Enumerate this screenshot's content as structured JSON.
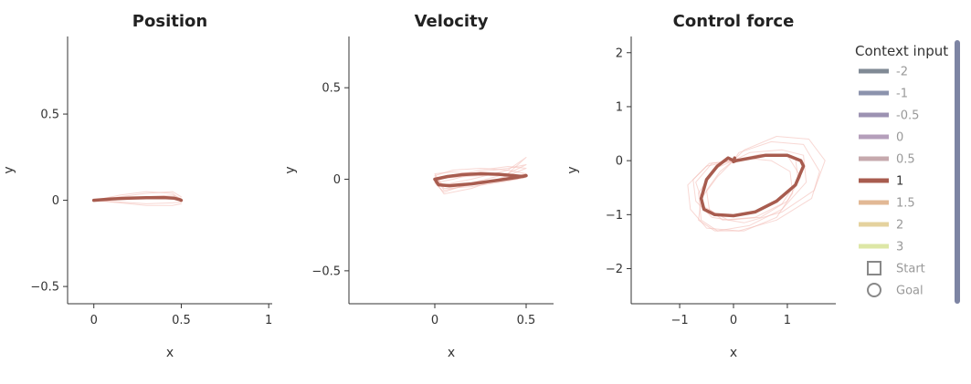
{
  "chart_data": [
    {
      "type": "line",
      "title": "Position",
      "xlabel": "x",
      "ylabel": "y",
      "xlim": [
        -0.15,
        1.02
      ],
      "ylim": [
        -0.6,
        0.95
      ],
      "xticks": [
        0,
        0.5,
        1
      ],
      "xtick_labels": [
        "0",
        "0.5",
        "1"
      ],
      "yticks": [
        -0.5,
        0,
        0.5
      ],
      "ytick_labels": [
        "−0.5",
        "0",
        "0.5"
      ],
      "series": [
        {
          "context": "1",
          "role": "mean",
          "x": [
            0.0,
            0.1,
            0.2,
            0.3,
            0.4,
            0.46,
            0.49,
            0.5
          ],
          "y": [
            0.0,
            0.008,
            0.012,
            0.015,
            0.016,
            0.012,
            0.004,
            0.0
          ]
        },
        {
          "context": "1",
          "role": "trial",
          "x": [
            0.0,
            0.15,
            0.3,
            0.45,
            0.5
          ],
          "y": [
            0.0,
            0.03,
            0.05,
            0.04,
            0.0
          ]
        },
        {
          "context": "1",
          "role": "trial",
          "x": [
            0.0,
            0.15,
            0.3,
            0.45,
            0.5
          ],
          "y": [
            0.0,
            0.02,
            0.04,
            0.05,
            0.02
          ]
        },
        {
          "context": "1",
          "role": "trial",
          "x": [
            0.0,
            0.15,
            0.3,
            0.45,
            0.5
          ],
          "y": [
            0.0,
            -0.01,
            -0.02,
            -0.015,
            -0.01
          ]
        },
        {
          "context": "1",
          "role": "trial",
          "x": [
            0.0,
            0.15,
            0.3,
            0.45,
            0.5
          ],
          "y": [
            0.0,
            -0.015,
            -0.03,
            -0.03,
            -0.02
          ]
        },
        {
          "context": "1",
          "role": "trial",
          "x": [
            0.0,
            0.15,
            0.3,
            0.45,
            0.5
          ],
          "y": [
            0.0,
            0.01,
            0.02,
            0.03,
            0.01
          ]
        }
      ]
    },
    {
      "type": "line",
      "title": "Velocity",
      "xlabel": "x",
      "ylabel": "y",
      "xlim": [
        -0.47,
        0.65
      ],
      "ylim": [
        -0.68,
        0.78
      ],
      "xticks": [
        0,
        0.5
      ],
      "xtick_labels": [
        "0",
        "0.5"
      ],
      "yticks": [
        -0.5,
        0,
        0.5
      ],
      "ytick_labels": [
        "−0.5",
        "0",
        "0.5"
      ],
      "series": [
        {
          "context": "1",
          "role": "mean",
          "x": [
            0.0,
            0.07,
            0.15,
            0.25,
            0.35,
            0.43,
            0.48,
            0.5,
            0.45,
            0.35,
            0.2,
            0.08,
            0.02,
            0.0
          ],
          "y": [
            0.0,
            0.015,
            0.025,
            0.03,
            0.027,
            0.02,
            0.015,
            0.02,
            0.01,
            -0.005,
            -0.025,
            -0.035,
            -0.03,
            0.0
          ]
        },
        {
          "context": "1",
          "role": "trial",
          "x": [
            0.0,
            0.1,
            0.25,
            0.4,
            0.5,
            0.4,
            0.2,
            0.05,
            0.0
          ],
          "y": [
            0.02,
            0.05,
            0.06,
            0.05,
            0.03,
            0.01,
            -0.03,
            -0.06,
            0.02
          ]
        },
        {
          "context": "1",
          "role": "trial",
          "x": [
            0.0,
            0.1,
            0.25,
            0.4,
            0.5,
            0.4,
            0.2,
            0.05,
            0.0
          ],
          "y": [
            -0.01,
            0.02,
            0.05,
            0.07,
            0.06,
            0.02,
            -0.05,
            -0.08,
            -0.01
          ]
        },
        {
          "context": "1",
          "role": "trial",
          "x": [
            0.0,
            0.1,
            0.25,
            0.4,
            0.5,
            0.4,
            0.2,
            0.05,
            0.0
          ],
          "y": [
            0.0,
            0.01,
            0.02,
            0.03,
            0.12,
            0.05,
            0.0,
            -0.03,
            0.0
          ]
        },
        {
          "context": "1",
          "role": "trial",
          "x": [
            0.0,
            0.1,
            0.25,
            0.4,
            0.5,
            0.4,
            0.2,
            0.05,
            0.0
          ],
          "y": [
            0.03,
            0.04,
            0.03,
            0.02,
            0.01,
            -0.01,
            -0.04,
            -0.05,
            0.03
          ]
        },
        {
          "context": "1",
          "role": "trial",
          "x": [
            0.0,
            0.1,
            0.25,
            0.4,
            0.5,
            0.4,
            0.2,
            0.05,
            0.0
          ],
          "y": [
            -0.02,
            0.0,
            0.04,
            0.06,
            0.08,
            0.03,
            -0.02,
            -0.07,
            -0.02
          ]
        }
      ]
    },
    {
      "type": "line",
      "title": "Control force",
      "xlabel": "x",
      "ylabel": "y",
      "xlim": [
        -1.9,
        1.9
      ],
      "ylim": [
        -2.65,
        2.3
      ],
      "xticks": [
        -1,
        0,
        1
      ],
      "xtick_labels": [
        "−1",
        "0",
        "1"
      ],
      "yticks": [
        -2,
        -1,
        0,
        1,
        2
      ],
      "ytick_labels": [
        "−2",
        "−1",
        "0",
        "1",
        "2"
      ],
      "series": [
        {
          "context": "1",
          "role": "mean",
          "x": [
            0.0,
            -0.1,
            -0.3,
            -0.5,
            -0.6,
            -0.55,
            -0.35,
            0.0,
            0.4,
            0.8,
            1.15,
            1.3,
            1.25,
            1.0,
            0.6,
            0.05,
            0.0,
            0.02
          ],
          "y": [
            0.0,
            0.05,
            -0.1,
            -0.35,
            -0.7,
            -0.9,
            -1.0,
            -1.02,
            -0.95,
            -0.75,
            -0.45,
            -0.1,
            0.0,
            0.1,
            0.1,
            0.0,
            -0.02,
            0.05
          ]
        },
        {
          "context": "1",
          "role": "trial",
          "x": [
            0.0,
            -0.35,
            -0.65,
            -0.6,
            -0.3,
            0.3,
            0.9,
            1.35,
            1.3,
            0.9,
            0.3,
            0.0
          ],
          "y": [
            0.0,
            -0.15,
            -0.6,
            -1.1,
            -1.3,
            -1.2,
            -0.9,
            -0.4,
            0.1,
            0.2,
            0.15,
            0.0
          ]
        },
        {
          "context": "1",
          "role": "trial",
          "x": [
            0.0,
            -0.45,
            -0.75,
            -0.7,
            -0.4,
            0.2,
            0.9,
            1.5,
            1.7,
            1.4,
            0.8,
            0.2,
            0.0
          ],
          "y": [
            0.0,
            -0.05,
            -0.35,
            -0.75,
            -1.05,
            -1.15,
            -0.95,
            -0.55,
            0.0,
            0.4,
            0.45,
            0.2,
            0.0
          ]
        },
        {
          "context": "1",
          "role": "trial",
          "x": [
            0.0,
            -0.25,
            -0.5,
            -0.45,
            -0.2,
            0.4,
            0.9,
            1.2,
            1.15,
            0.8,
            0.3,
            0.0
          ],
          "y": [
            0.0,
            -0.2,
            -0.55,
            -0.9,
            -1.1,
            -1.05,
            -0.8,
            -0.35,
            0.05,
            0.1,
            0.05,
            0.0
          ]
        },
        {
          "context": "1",
          "role": "trial",
          "x": [
            0.0,
            -0.5,
            -0.85,
            -0.8,
            -0.5,
            0.1,
            0.8,
            1.45,
            1.6,
            1.3,
            0.7,
            0.1,
            0.0
          ],
          "y": [
            0.0,
            -0.1,
            -0.45,
            -0.9,
            -1.25,
            -1.3,
            -1.1,
            -0.7,
            -0.2,
            0.3,
            0.35,
            0.15,
            0.0
          ]
        },
        {
          "context": "1",
          "role": "trial",
          "x": [
            0.0,
            -0.3,
            -0.6,
            -0.65,
            -0.35,
            0.2,
            0.8,
            1.1,
            1.05,
            0.7,
            0.2,
            0.0
          ],
          "y": [
            0.0,
            -0.3,
            -0.7,
            -1.1,
            -1.3,
            -1.3,
            -1.05,
            -0.6,
            -0.2,
            0.0,
            0.05,
            0.0
          ]
        },
        {
          "context": "1",
          "role": "trial",
          "x": [
            0.0,
            -0.4,
            -0.7,
            -0.55,
            -0.1,
            0.5,
            1.0,
            1.25,
            1.0,
            0.5,
            0.0
          ],
          "y": [
            0.0,
            -0.05,
            -0.4,
            -0.85,
            -1.1,
            -1.05,
            -0.75,
            -0.3,
            0.1,
            0.12,
            0.0
          ]
        }
      ]
    }
  ],
  "legend": {
    "title": "Context input",
    "items": [
      {
        "label": "-2",
        "color": "#808a95",
        "active": false
      },
      {
        "label": "-1",
        "color": "#8c93ad",
        "active": false
      },
      {
        "label": "-0.5",
        "color": "#9c92b2",
        "active": false
      },
      {
        "label": "0",
        "color": "#b59fbb",
        "active": false
      },
      {
        "label": "0.5",
        "color": "#c6a9ad",
        "active": false
      },
      {
        "label": "1",
        "color": "#a85c4f",
        "active": true
      },
      {
        "label": "1.5",
        "color": "#e2b895",
        "active": false
      },
      {
        "label": "2",
        "color": "#e5d29e",
        "active": false
      },
      {
        "label": "3",
        "color": "#dde7a6",
        "active": false
      }
    ],
    "markers": [
      {
        "label": "Start",
        "icon": "square-icon"
      },
      {
        "label": "Goal",
        "icon": "circle-icon"
      }
    ]
  },
  "colors": {
    "mean_line": "#a85c4f",
    "trial_line": "#f2b8b0",
    "axis": "#333333",
    "scrollbar": "#7d84a3"
  }
}
